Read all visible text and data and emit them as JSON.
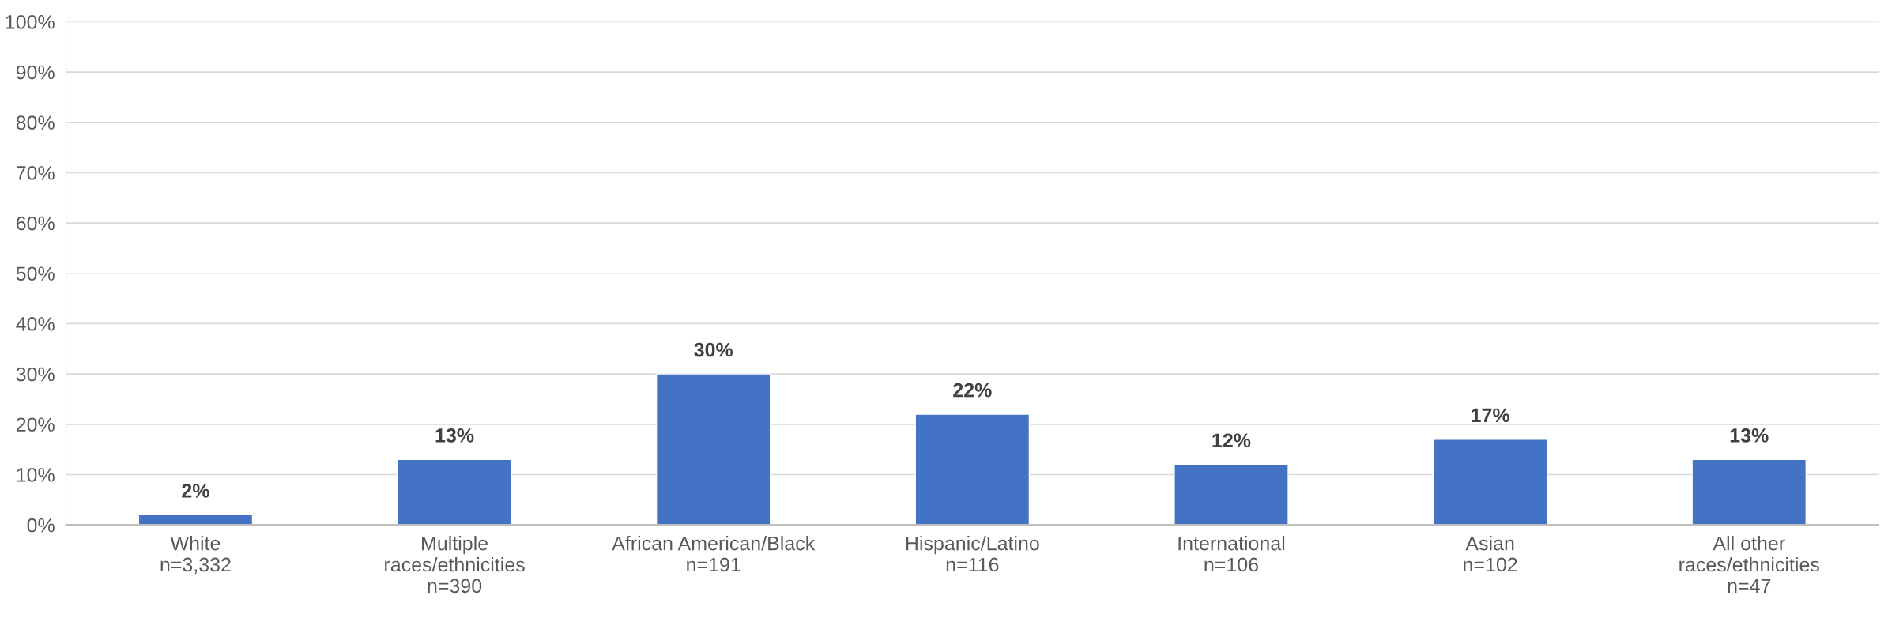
{
  "chart_data": {
    "type": "bar",
    "categories": [
      "White\nn=3,332",
      "Multiple\nraces/ethnicities\nn=390",
      "African American/Black\nn=191",
      "Hispanic/Latino\nn=116",
      "International\nn=106",
      "Asian\nn=102",
      "All other\nraces/ethnicities\nn=47"
    ],
    "values": [
      2,
      13,
      30,
      22,
      12,
      17,
      13
    ],
    "value_labels": [
      "2%",
      "13%",
      "30%",
      "22%",
      "12%",
      "17%",
      "13%"
    ],
    "color": "#4472c4",
    "ylim": [
      0,
      100
    ],
    "yticks": [
      {
        "value": 0,
        "label": "0%"
      },
      {
        "value": 10,
        "label": "10%"
      },
      {
        "value": 20,
        "label": "20%"
      },
      {
        "value": 30,
        "label": "30%"
      },
      {
        "value": 40,
        "label": "40%"
      },
      {
        "value": 50,
        "label": "50%"
      },
      {
        "value": 60,
        "label": "60%"
      },
      {
        "value": 70,
        "label": "70%"
      },
      {
        "value": 80,
        "label": "80%"
      },
      {
        "value": 90,
        "label": "90%"
      },
      {
        "value": 100,
        "label": "100%"
      }
    ],
    "grid": "y",
    "legend": false
  }
}
